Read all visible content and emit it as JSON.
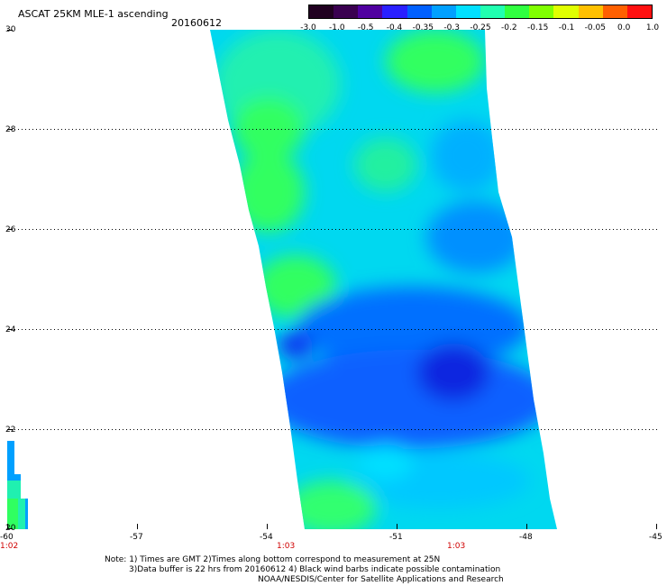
{
  "title": "ASCAT 25KM MLE-1 ascending",
  "date": "20160612",
  "colorbar": {
    "labels": [
      "-3.0",
      "-1.0",
      "-0.5",
      "-0.4",
      "-0.35",
      "-0.3",
      "-0.25",
      "-0.2",
      "-0.15",
      "-0.1",
      "-0.05",
      "0.0",
      "1.0"
    ],
    "colors": [
      "#200020",
      "#3a0050",
      "#5000a0",
      "#2a20ff",
      "#0060ff",
      "#00a0ff",
      "#00e0ff",
      "#20ffb0",
      "#30ff40",
      "#80ff00",
      "#e0ff00",
      "#ffc000",
      "#ff6000",
      "#ff1010"
    ]
  },
  "axes": {
    "x_ticks": [
      "-60",
      "-57",
      "-54",
      "-51",
      "-48",
      "-45"
    ],
    "y_ticks": [
      "30",
      "28",
      "26",
      "24",
      "22",
      "20"
    ]
  },
  "times": [
    "1:02",
    "1:03",
    "1:03"
  ],
  "notes": [
    "Note: 1) Times are GMT 2)Times along bottom correspond to measurement at 25N",
    "3)Data buffer is 22 hrs from 20160612 4) Black wind barbs indicate possible contamination",
    "NOAA/NESDIS/Center for Satellite Applications and Research"
  ]
}
